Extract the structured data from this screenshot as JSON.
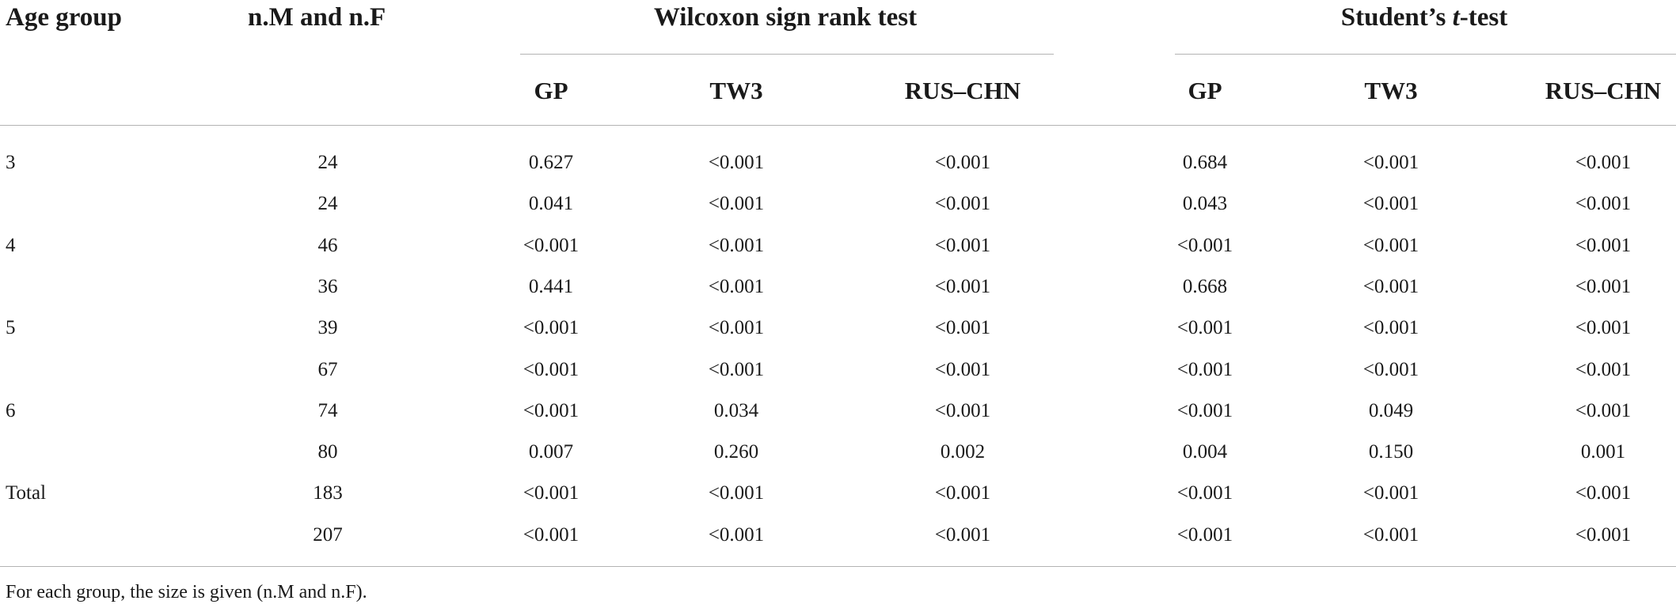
{
  "table": {
    "headers": {
      "age_group": "Age group",
      "sizes": "n.M and n.F",
      "wilcoxon": "Wilcoxon sign rank test",
      "ttest_prefix": "Student’s ",
      "ttest_italic": "t",
      "ttest_suffix": "-test"
    },
    "subheaders": {
      "wilcoxon": [
        "GP",
        "TW3",
        "RUS–CHN"
      ],
      "ttest": [
        "GP",
        "TW3",
        "RUS–CHN"
      ]
    },
    "rows": [
      {
        "age": "3",
        "n": "24",
        "w": [
          "0.627",
          "<0.001",
          "<0.001"
        ],
        "t": [
          "0.684",
          "<0.001",
          "<0.001"
        ]
      },
      {
        "age": "",
        "n": "24",
        "w": [
          "0.041",
          "<0.001",
          "<0.001"
        ],
        "t": [
          "0.043",
          "<0.001",
          "<0.001"
        ]
      },
      {
        "age": "4",
        "n": "46",
        "w": [
          "<0.001",
          "<0.001",
          "<0.001"
        ],
        "t": [
          "<0.001",
          "<0.001",
          "<0.001"
        ]
      },
      {
        "age": "",
        "n": "36",
        "w": [
          "0.441",
          "<0.001",
          "<0.001"
        ],
        "t": [
          "0.668",
          "<0.001",
          "<0.001"
        ]
      },
      {
        "age": "5",
        "n": "39",
        "w": [
          "<0.001",
          "<0.001",
          "<0.001"
        ],
        "t": [
          "<0.001",
          "<0.001",
          "<0.001"
        ]
      },
      {
        "age": "",
        "n": "67",
        "w": [
          "<0.001",
          "<0.001",
          "<0.001"
        ],
        "t": [
          "<0.001",
          "<0.001",
          "<0.001"
        ]
      },
      {
        "age": "6",
        "n": "74",
        "w": [
          "<0.001",
          "0.034",
          "<0.001"
        ],
        "t": [
          "<0.001",
          "0.049",
          "<0.001"
        ]
      },
      {
        "age": "",
        "n": "80",
        "w": [
          "0.007",
          "0.260",
          "0.002"
        ],
        "t": [
          "0.004",
          "0.150",
          "0.001"
        ]
      },
      {
        "age": "Total",
        "n": "183",
        "w": [
          "<0.001",
          "<0.001",
          "<0.001"
        ],
        "t": [
          "<0.001",
          "<0.001",
          "<0.001"
        ]
      },
      {
        "age": "",
        "n": "207",
        "w": [
          "<0.001",
          "<0.001",
          "<0.001"
        ],
        "t": [
          "<0.001",
          "<0.001",
          "<0.001"
        ]
      }
    ],
    "footnote": "For each group, the size is given (n.M and n.F)."
  }
}
